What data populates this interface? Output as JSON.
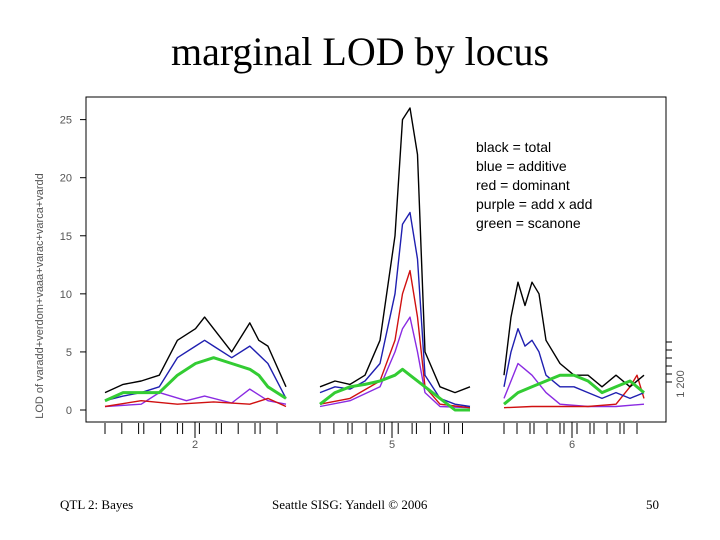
{
  "title": "marginal LOD by locus",
  "footer": {
    "left": "QTL 2: Bayes",
    "center": "Seattle SISG: Yandell © 2006",
    "right": "50"
  },
  "chart_data": {
    "type": "line",
    "ylabel": "LOD of varadd+verdom+vaaa+varac+varca+vardd",
    "ylim": [
      0,
      26
    ],
    "yticks": [
      0,
      5,
      10,
      15,
      20,
      25
    ],
    "xticklabels": [
      "2",
      "5",
      "6"
    ],
    "right_axis_label": "1   200",
    "legend": {
      "placement": "top-right",
      "entries": [
        "black = total",
        "blue = additive",
        "red = dominant",
        "purple = add x add",
        "green = scanone"
      ]
    },
    "colors": {
      "total": "#000000",
      "additive": "#1f1fb0",
      "dominant": "#d01010",
      "addxadd": "#8a2be2",
      "scanone": "#33cc33"
    },
    "panels": [
      {
        "chromosome": "2",
        "series": [
          {
            "key": "total",
            "x": [
              0,
              0.1,
              0.2,
              0.3,
              0.4,
              0.5,
              0.55,
              0.6,
              0.7,
              0.8,
              0.85,
              0.9,
              1.0
            ],
            "y": [
              1.5,
              2.2,
              2.5,
              3.0,
              6.0,
              7.0,
              8.0,
              7.0,
              5.0,
              7.5,
              6.0,
              5.5,
              2.0
            ]
          },
          {
            "key": "additive",
            "x": [
              0,
              0.1,
              0.2,
              0.3,
              0.4,
              0.5,
              0.55,
              0.6,
              0.7,
              0.8,
              0.9,
              1.0
            ],
            "y": [
              0.8,
              1.2,
              1.5,
              2.0,
              4.5,
              5.5,
              6.0,
              5.5,
              4.5,
              5.5,
              4.0,
              1.0
            ]
          },
          {
            "key": "dominant",
            "x": [
              0,
              0.2,
              0.4,
              0.6,
              0.8,
              0.9,
              1.0
            ],
            "y": [
              0.3,
              0.8,
              0.5,
              0.7,
              0.5,
              1.0,
              0.3
            ]
          },
          {
            "key": "addxadd",
            "x": [
              0,
              0.2,
              0.3,
              0.45,
              0.55,
              0.7,
              0.8,
              0.9,
              1.0
            ],
            "y": [
              0.3,
              0.5,
              1.5,
              0.8,
              1.2,
              0.6,
              1.8,
              0.8,
              0.5
            ]
          },
          {
            "key": "scanone",
            "x": [
              0,
              0.1,
              0.2,
              0.3,
              0.4,
              0.5,
              0.6,
              0.7,
              0.8,
              0.85,
              0.9,
              1.0
            ],
            "y": [
              0.8,
              1.5,
              1.5,
              1.5,
              3.0,
              4.0,
              4.5,
              4.0,
              3.5,
              3.0,
              2.0,
              1.0
            ]
          }
        ]
      },
      {
        "chromosome": "5",
        "series": [
          {
            "key": "total",
            "x": [
              0,
              0.1,
              0.2,
              0.3,
              0.4,
              0.5,
              0.55,
              0.6,
              0.65,
              0.7,
              0.8,
              0.9,
              1.0
            ],
            "y": [
              2.0,
              2.5,
              2.2,
              3.0,
              6.0,
              15.0,
              25.0,
              26.0,
              22.0,
              5.0,
              2.0,
              1.5,
              2.0
            ]
          },
          {
            "key": "additive",
            "x": [
              0,
              0.1,
              0.2,
              0.3,
              0.4,
              0.5,
              0.55,
              0.6,
              0.65,
              0.7,
              0.8,
              0.9,
              1.0
            ],
            "y": [
              1.5,
              2.0,
              1.8,
              2.5,
              4.0,
              10.0,
              16.0,
              17.0,
              13.0,
              3.0,
              1.0,
              0.5,
              0.3
            ]
          },
          {
            "key": "dominant",
            "x": [
              0,
              0.2,
              0.4,
              0.5,
              0.55,
              0.6,
              0.65,
              0.7,
              0.8,
              1.0
            ],
            "y": [
              0.5,
              1.0,
              2.5,
              6.0,
              10.0,
              12.0,
              8.0,
              2.0,
              0.5,
              0.2
            ]
          },
          {
            "key": "addxadd",
            "x": [
              0,
              0.2,
              0.4,
              0.5,
              0.55,
              0.6,
              0.65,
              0.7,
              0.8,
              1.0
            ],
            "y": [
              0.3,
              0.8,
              2.0,
              5.0,
              7.0,
              8.0,
              5.0,
              1.5,
              0.3,
              0.2
            ]
          },
          {
            "key": "scanone",
            "x": [
              0,
              0.1,
              0.2,
              0.3,
              0.4,
              0.5,
              0.55,
              0.6,
              0.7,
              0.8,
              0.9,
              1.0
            ],
            "y": [
              0.5,
              1.5,
              2.0,
              2.2,
              2.5,
              3.0,
              3.5,
              3.0,
              2.0,
              1.0,
              0.0,
              0.0
            ]
          }
        ]
      },
      {
        "chromosome": "6",
        "series": [
          {
            "key": "total",
            "x": [
              0,
              0.05,
              0.1,
              0.15,
              0.2,
              0.25,
              0.3,
              0.4,
              0.5,
              0.6,
              0.7,
              0.8,
              0.9,
              1.0
            ],
            "y": [
              3.0,
              8.0,
              11.0,
              9.0,
              11.0,
              10.0,
              6.0,
              4.0,
              3.0,
              3.0,
              2.0,
              3.0,
              2.0,
              3.0
            ]
          },
          {
            "key": "additive",
            "x": [
              0,
              0.05,
              0.1,
              0.15,
              0.2,
              0.25,
              0.3,
              0.4,
              0.5,
              0.6,
              0.7,
              0.8,
              0.9,
              1.0
            ],
            "y": [
              2.0,
              5.0,
              7.0,
              5.5,
              6.0,
              5.0,
              3.0,
              2.0,
              2.0,
              1.5,
              1.0,
              1.5,
              1.0,
              1.5
            ]
          },
          {
            "key": "dominant",
            "x": [
              0,
              0.2,
              0.4,
              0.6,
              0.8,
              0.9,
              0.95,
              1.0
            ],
            "y": [
              0.2,
              0.3,
              0.3,
              0.3,
              0.5,
              2.0,
              3.0,
              1.0
            ]
          },
          {
            "key": "addxadd",
            "x": [
              0,
              0.05,
              0.1,
              0.15,
              0.2,
              0.3,
              0.4,
              0.6,
              0.8,
              1.0
            ],
            "y": [
              1.0,
              2.5,
              4.0,
              3.5,
              3.0,
              1.5,
              0.5,
              0.3,
              0.3,
              0.5
            ]
          },
          {
            "key": "scanone",
            "x": [
              0,
              0.1,
              0.2,
              0.3,
              0.4,
              0.5,
              0.6,
              0.7,
              0.8,
              0.9,
              1.0
            ],
            "y": [
              0.5,
              1.5,
              2.0,
              2.5,
              3.0,
              3.0,
              2.5,
              1.5,
              2.0,
              2.5,
              1.5
            ]
          }
        ]
      }
    ]
  }
}
